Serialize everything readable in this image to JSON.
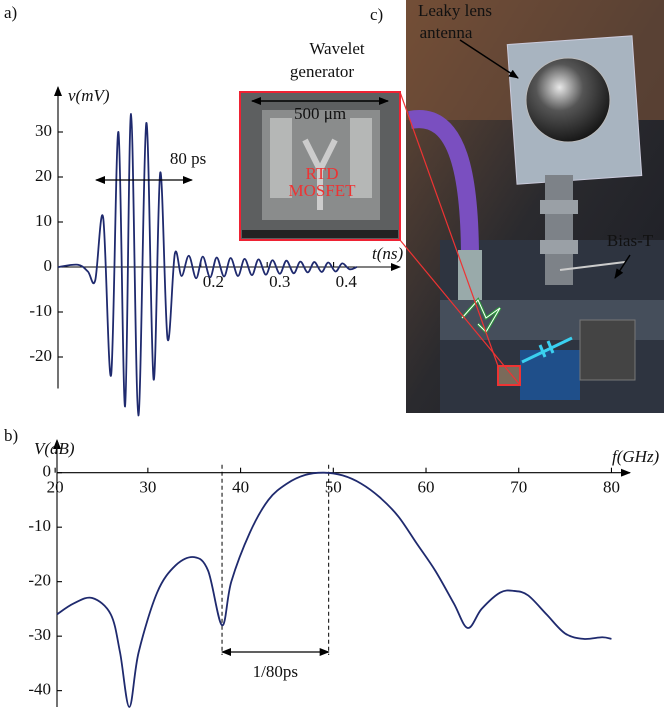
{
  "panels": {
    "a": "a)",
    "b": "b)",
    "c": "c)"
  },
  "inset": {
    "title_lines": [
      "Wavelet",
      "generator"
    ],
    "scale": "500 μm",
    "labels": [
      "RTD",
      "MOSFET"
    ]
  },
  "photo": {
    "antenna_lines": [
      "Leaky lens",
      "antenna"
    ],
    "bias": "Bias-T"
  },
  "chart_data": [
    {
      "type": "line",
      "x_label": "t(ns)",
      "y_label": "v(mV)",
      "annotation": "80 ps",
      "x": [
        -0.015,
        0.015,
        0.03,
        0.041,
        0.053,
        0.065,
        0.076,
        0.086,
        0.095,
        0.106,
        0.118,
        0.129,
        0.139,
        0.15,
        0.161,
        0.171,
        0.182,
        0.193,
        0.203,
        0.214,
        0.224,
        0.235,
        0.245,
        0.256,
        0.266,
        0.277,
        0.287,
        0.298,
        0.308,
        0.319,
        0.329,
        0.34,
        0.35,
        0.361,
        0.371,
        0.382,
        0.392,
        0.403,
        0.413,
        0.424,
        0.435
      ],
      "series": [
        {
          "color": "#1f2a6e",
          "values": [
            0,
            0.5,
            -1,
            -3,
            11,
            -24,
            30,
            -31,
            34,
            -33,
            32,
            -25,
            21,
            -16,
            3,
            -2,
            2.5,
            -2.5,
            2.3,
            -2.3,
            2.1,
            -2.1,
            2,
            -2,
            1.8,
            -1.8,
            1.7,
            -1.7,
            1.5,
            -1.5,
            1.4,
            -1.4,
            1.2,
            -1.2,
            1.1,
            -1.1,
            1,
            -1,
            0.8,
            -0.5,
            0
          ]
        }
      ],
      "xlim": [
        -0.015,
        0.5
      ],
      "ylim": [
        -27,
        40
      ],
      "xticks": [
        0.2,
        0.3,
        0.4
      ],
      "yticks": [
        30,
        20,
        10,
        0,
        -10,
        -20
      ]
    },
    {
      "type": "line",
      "x_label": "f(GHz)",
      "y_label": "V(dB)",
      "annotation": "1/80ps",
      "vlines": [
        38,
        49.5
      ],
      "x": [
        20.2,
        22,
        24,
        26,
        27,
        28,
        29,
        31,
        33,
        35,
        36.5,
        38,
        39,
        41,
        43,
        45,
        47,
        49,
        51,
        53,
        55,
        57,
        59,
        61,
        63,
        64.5,
        66,
        68,
        69.5,
        71,
        73,
        75,
        77,
        79,
        80
      ],
      "series": [
        {
          "color": "#1f2a6e",
          "values": [
            -26,
            -24,
            -23,
            -26,
            -33,
            -43,
            -33,
            -22,
            -17,
            -15.5,
            -18,
            -28,
            -20,
            -11,
            -5,
            -2,
            -0.4,
            0,
            -0.5,
            -2,
            -4.5,
            -8,
            -13,
            -18,
            -24,
            -28.5,
            -25,
            -22,
            -21.7,
            -22.5,
            -26,
            -29.5,
            -30.5,
            -30.2,
            -30.5
          ]
        }
      ],
      "xlim": [
        20.2,
        82
      ],
      "ylim": [
        -43,
        6
      ],
      "xticks": [
        20,
        30,
        40,
        50,
        60,
        70,
        80
      ],
      "yticks": [
        0,
        -10,
        -20,
        -30,
        -40
      ]
    }
  ]
}
